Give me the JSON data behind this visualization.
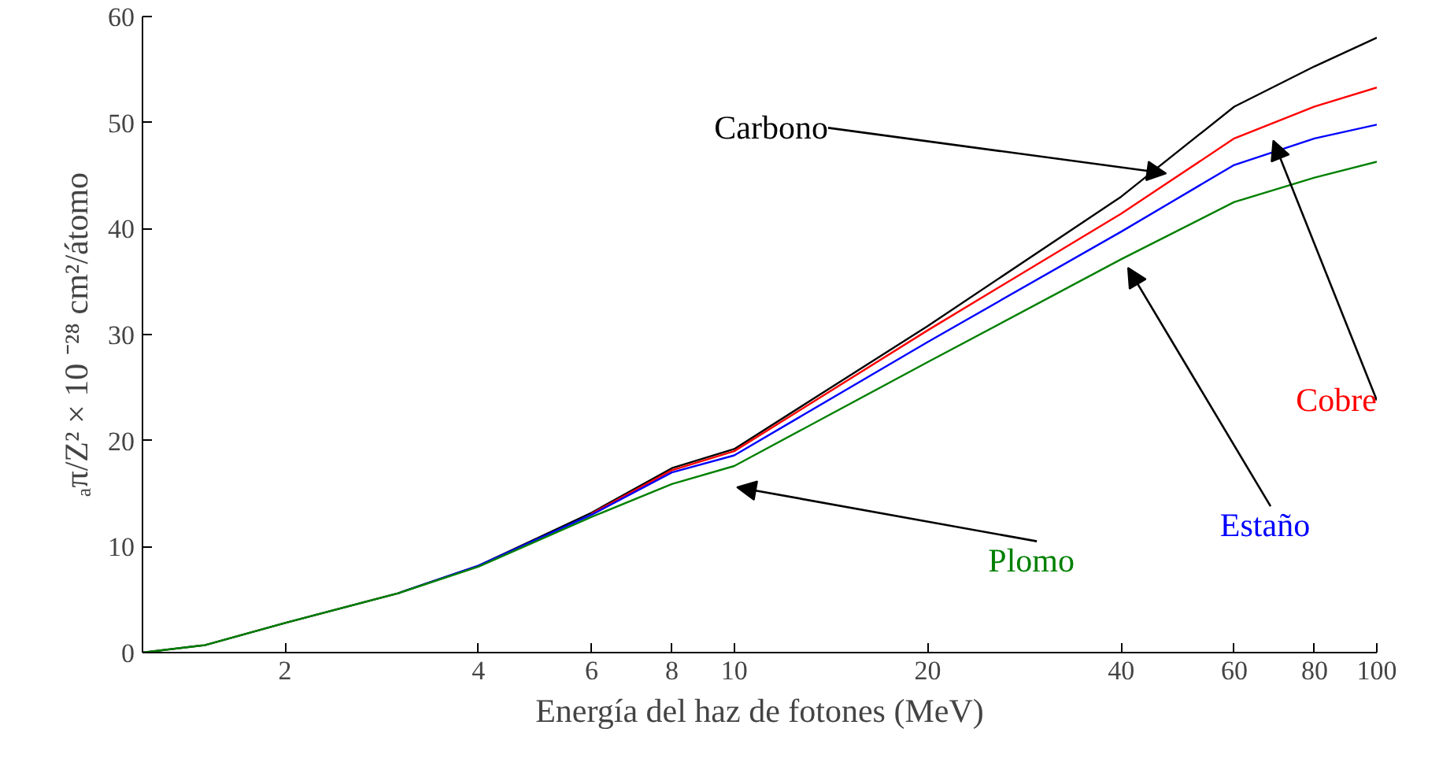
{
  "chart_data": {
    "type": "line",
    "xlabel": "Energía del haz de fotones (MeV)",
    "ylabel": "ₐπ/Z² × 10 ⁻²⁸ cm²/átomo",
    "x": [
      1.2,
      1.5,
      2,
      3,
      4,
      6,
      8,
      10,
      20,
      40,
      60,
      80,
      100
    ],
    "series": [
      {
        "name": "Carbono",
        "color": "#000000",
        "values": [
          0,
          0.7,
          2.8,
          5.6,
          8.2,
          13.2,
          17.4,
          19.2,
          30.8,
          43,
          51.5,
          55.3,
          58
        ]
      },
      {
        "name": "Cobre",
        "color": "#ff0000",
        "values": [
          null,
          null,
          null,
          null,
          null,
          13.1,
          17.2,
          19,
          30.4,
          41.4,
          48.5,
          51.5,
          53.3
        ]
      },
      {
        "name": "Estaño",
        "color": "#0000ff",
        "values": [
          null,
          null,
          null,
          5.6,
          8.2,
          13,
          17,
          18.6,
          29.3,
          39.7,
          46,
          48.5,
          49.8
        ]
      },
      {
        "name": "Plomo",
        "color": "#008000",
        "values": [
          0,
          0.7,
          2.8,
          5.6,
          8.1,
          12.8,
          15.9,
          17.6,
          27.4,
          37.1,
          42.5,
          44.8,
          46.3
        ]
      }
    ],
    "xlim": [
      1.2,
      100
    ],
    "ylim": [
      0,
      60
    ],
    "annotations": [
      "0"
    ],
    "xticks": [
      2,
      4,
      6,
      8,
      10,
      20,
      40,
      60,
      80,
      100
    ],
    "yticks": [
      0,
      10,
      20,
      30,
      40,
      50,
      60
    ],
    "log": "x",
    "grid": false,
    "line_style": "solid",
    "marker": "none"
  }
}
